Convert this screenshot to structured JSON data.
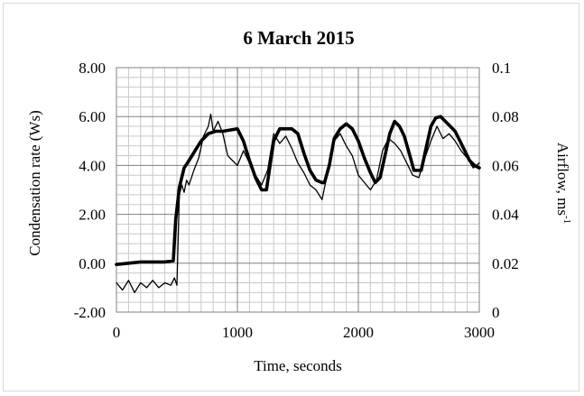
{
  "chart_data": {
    "type": "line",
    "title": "6 March 2015",
    "xlabel": "Time, seconds",
    "ylabel": "Condensation rate (Ws)",
    "y2label_main": "Airflow, ms",
    "y2label_sup": "-1",
    "xlim": [
      0,
      3000
    ],
    "ylim": [
      -2,
      8
    ],
    "y2lim": [
      0,
      0.1
    ],
    "x_ticks": [
      "0",
      "1000",
      "2000",
      "3000"
    ],
    "y_ticks": [
      "-2.00",
      "0.00",
      "2.00",
      "4.00",
      "6.00",
      "8.00"
    ],
    "y2_ticks": [
      "0",
      "0.02",
      "0.04",
      "0.06",
      "0.08",
      "0.1"
    ],
    "grid": true,
    "series": [
      {
        "axis": "left",
        "style": "thick",
        "x": [
          0,
          100,
          200,
          300,
          400,
          470,
          490,
          520,
          560,
          600,
          650,
          700,
          760,
          820,
          880,
          940,
          1000,
          1050,
          1100,
          1150,
          1200,
          1240,
          1270,
          1300,
          1350,
          1400,
          1450,
          1500,
          1550,
          1600,
          1650,
          1700,
          1720,
          1760,
          1800,
          1850,
          1900,
          1950,
          2000,
          2050,
          2100,
          2140,
          2180,
          2220,
          2260,
          2300,
          2340,
          2380,
          2420,
          2460,
          2520,
          2560,
          2600,
          2640,
          2680,
          2720,
          2760,
          2800,
          2840,
          2880,
          2920,
          2960,
          3000
        ],
        "y": [
          -0.05,
          0.0,
          0.05,
          0.05,
          0.05,
          0.1,
          1.8,
          3.1,
          3.9,
          4.2,
          4.6,
          5.0,
          5.3,
          5.4,
          5.4,
          5.45,
          5.5,
          5.0,
          4.2,
          3.5,
          3.0,
          3.0,
          4.0,
          5.0,
          5.5,
          5.5,
          5.5,
          5.3,
          4.5,
          3.8,
          3.4,
          3.3,
          3.3,
          4.0,
          5.1,
          5.5,
          5.7,
          5.5,
          5.0,
          4.3,
          3.7,
          3.3,
          3.5,
          4.4,
          5.3,
          5.8,
          5.6,
          5.2,
          4.5,
          3.8,
          3.8,
          4.7,
          5.6,
          5.95,
          6.0,
          5.8,
          5.6,
          5.4,
          5.0,
          4.6,
          4.2,
          4.0,
          3.9
        ]
      },
      {
        "axis": "left",
        "style": "thin",
        "x": [
          0,
          50,
          100,
          150,
          200,
          250,
          300,
          350,
          400,
          450,
          480,
          500,
          520,
          540,
          560,
          580,
          600,
          640,
          680,
          720,
          760,
          780,
          800,
          840,
          880,
          920,
          960,
          1000,
          1050,
          1100,
          1150,
          1200,
          1250,
          1300,
          1350,
          1400,
          1450,
          1500,
          1550,
          1600,
          1650,
          1700,
          1750,
          1800,
          1850,
          1900,
          1950,
          2000,
          2050,
          2100,
          2150,
          2200,
          2250,
          2300,
          2350,
          2400,
          2450,
          2500,
          2550,
          2600,
          2650,
          2700,
          2750,
          2800,
          2850,
          2900,
          2950,
          3000
        ],
        "y": [
          -0.8,
          -1.1,
          -0.7,
          -1.2,
          -0.8,
          -1.0,
          -0.7,
          -1.0,
          -0.8,
          -0.9,
          -0.6,
          -0.9,
          2.8,
          3.2,
          2.9,
          3.4,
          3.2,
          3.8,
          4.3,
          5.2,
          5.6,
          6.1,
          5.4,
          5.8,
          5.3,
          4.4,
          4.2,
          4.0,
          4.6,
          4.1,
          3.6,
          3.2,
          3.8,
          5.3,
          4.9,
          5.2,
          4.7,
          4.1,
          3.7,
          3.2,
          3.0,
          2.6,
          3.8,
          5.0,
          5.3,
          4.8,
          4.4,
          3.6,
          3.3,
          3.0,
          3.4,
          4.6,
          5.1,
          4.9,
          4.6,
          4.1,
          3.6,
          3.5,
          4.3,
          5.0,
          5.6,
          5.1,
          5.3,
          5.0,
          4.6,
          4.3,
          3.9,
          4.1
        ]
      }
    ]
  }
}
